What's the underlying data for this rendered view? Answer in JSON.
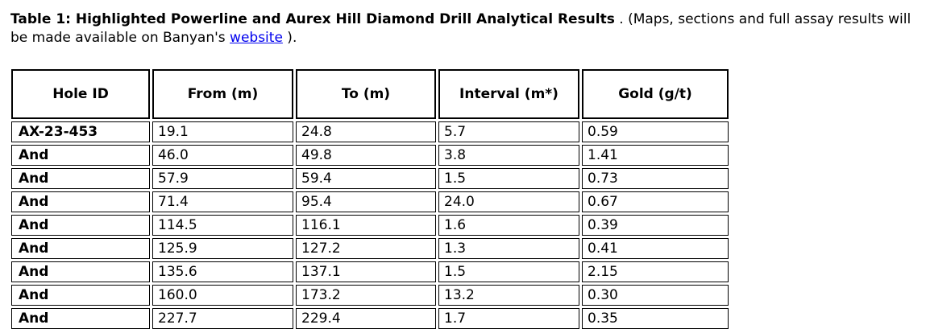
{
  "colors": {
    "background": "#ffffff",
    "text": "#000000",
    "link": "#0000ee",
    "table_border": "#000000"
  },
  "caption": {
    "bold_text": "Table 1: Highlighted Powerline and Aurex Hill Diamond Drill Analytical Results",
    "text_before_link": " . (Maps, sections and full assay results will be made available on Banyan's ",
    "link_text": "website",
    "text_after_link": " )."
  },
  "table": {
    "columns": [
      "Hole ID",
      "From (m)",
      "To (m)",
      "Interval (m*)",
      "Gold (g/t)"
    ],
    "rows": [
      [
        "AX-23-453",
        "19.1",
        "24.8",
        "5.7",
        "0.59"
      ],
      [
        "And",
        "46.0",
        "49.8",
        "3.8",
        "1.41"
      ],
      [
        "And",
        "57.9",
        "59.4",
        "1.5",
        "0.73"
      ],
      [
        "And",
        "71.4",
        "95.4",
        "24.0",
        "0.67"
      ],
      [
        "And",
        "114.5",
        "116.1",
        "1.6",
        "0.39"
      ],
      [
        "And",
        "125.9",
        "127.2",
        "1.3",
        "0.41"
      ],
      [
        "And",
        "135.6",
        "137.1",
        "1.5",
        "2.15"
      ],
      [
        "And",
        "160.0",
        "173.2",
        "13.2",
        "0.30"
      ],
      [
        "And",
        "227.7",
        "229.4",
        "1.7",
        "0.35"
      ]
    ]
  }
}
